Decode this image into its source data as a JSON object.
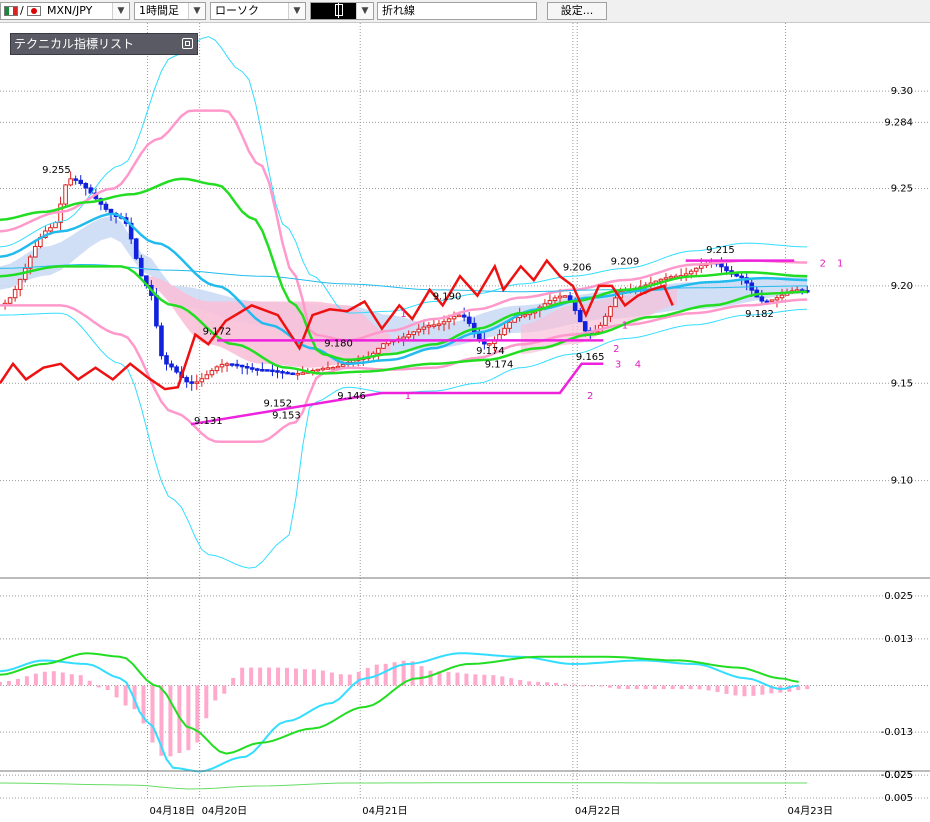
{
  "toolbar": {
    "symbol": "MXN/JPY",
    "slash": "/",
    "timeframe": "1時間足",
    "chart_type": "ローソク",
    "line_type": "折れ線",
    "settings_label": "設定..."
  },
  "indicator_panel": {
    "label": "テクニカル指標リスト"
  },
  "chart_data": [
    {
      "type": "candlestick",
      "ylim": [
        9.05,
        9.335
      ],
      "y_ticks": [
        "9.30",
        "9.284",
        "9.25",
        "9.20",
        "9.15",
        "9.10"
      ],
      "y_tick_values": [
        9.3,
        9.284,
        9.25,
        9.2,
        9.15,
        9.1
      ],
      "x_labels": [
        "04月18日",
        "04月20日",
        "04月21日",
        "04月22日",
        "04月23日"
      ],
      "x_label_pos": [
        0.17,
        0.23,
        0.415,
        0.66,
        0.905
      ],
      "annotations": [
        {
          "t": "9.255",
          "x": 0.065,
          "v": 9.258
        },
        {
          "t": "9.172",
          "x": 0.25,
          "v": 9.175
        },
        {
          "t": "9.131",
          "x": 0.24,
          "v": 9.129
        },
        {
          "t": "9.152",
          "x": 0.32,
          "v": 9.138
        },
        {
          "t": "9.153",
          "x": 0.33,
          "v": 9.132
        },
        {
          "t": "9.180",
          "x": 0.39,
          "v": 9.169
        },
        {
          "t": "9.146",
          "x": 0.405,
          "v": 9.142
        },
        {
          "t": "9.190",
          "x": 0.515,
          "v": 9.193
        },
        {
          "t": "9.174",
          "x": 0.565,
          "v": 9.165
        },
        {
          "t": "9.174",
          "x": 0.575,
          "v": 9.158
        },
        {
          "t": "9.206",
          "x": 0.665,
          "v": 9.208
        },
        {
          "t": "9.165",
          "x": 0.68,
          "v": 9.162
        },
        {
          "t": "9.209",
          "x": 0.72,
          "v": 9.211
        },
        {
          "t": "9.215",
          "x": 0.83,
          "v": 9.217
        },
        {
          "t": "9.182",
          "x": 0.875,
          "v": 9.184
        }
      ],
      "markers": [
        {
          "t": "1",
          "x": 0.47,
          "v": 9.142
        },
        {
          "t": "2",
          "x": 0.68,
          "v": 9.142
        },
        {
          "t": "1",
          "x": 0.72,
          "v": 9.178
        },
        {
          "t": "2",
          "x": 0.71,
          "v": 9.166
        },
        {
          "t": "3",
          "x": 0.712,
          "v": 9.158
        },
        {
          "t": "4",
          "x": 0.735,
          "v": 9.158
        },
        {
          "t": "1",
          "x": 0.465,
          "v": 9.184
        },
        {
          "t": "2",
          "x": 0.948,
          "v": 9.21
        },
        {
          "t": "1",
          "x": 0.968,
          "v": 9.21
        }
      ]
    },
    {
      "type": "macd",
      "ylim": [
        -0.03,
        0.03
      ],
      "y_ticks": [
        "0.025",
        "0.013",
        "-0.013",
        "-0.025"
      ],
      "y_tick_values": [
        0.025,
        0.013,
        -0.013,
        -0.025
      ]
    },
    {
      "type": "oscillator",
      "y_ticks": [
        "0.025",
        "0.005"
      ]
    }
  ],
  "colors": {
    "bb_outer": "#33ddff",
    "bb_mid": "#ff99cc",
    "ma_green": "#22dd22",
    "ma_blue": "#22bbee",
    "red_line": "#ee1111",
    "magenta_line": "#ee22dd",
    "hist": "#ffaacc",
    "bull": "#dd2222",
    "bear": "#1122dd",
    "band_blue": "#c8d8f4",
    "band_pink": "#f8c0d8"
  }
}
